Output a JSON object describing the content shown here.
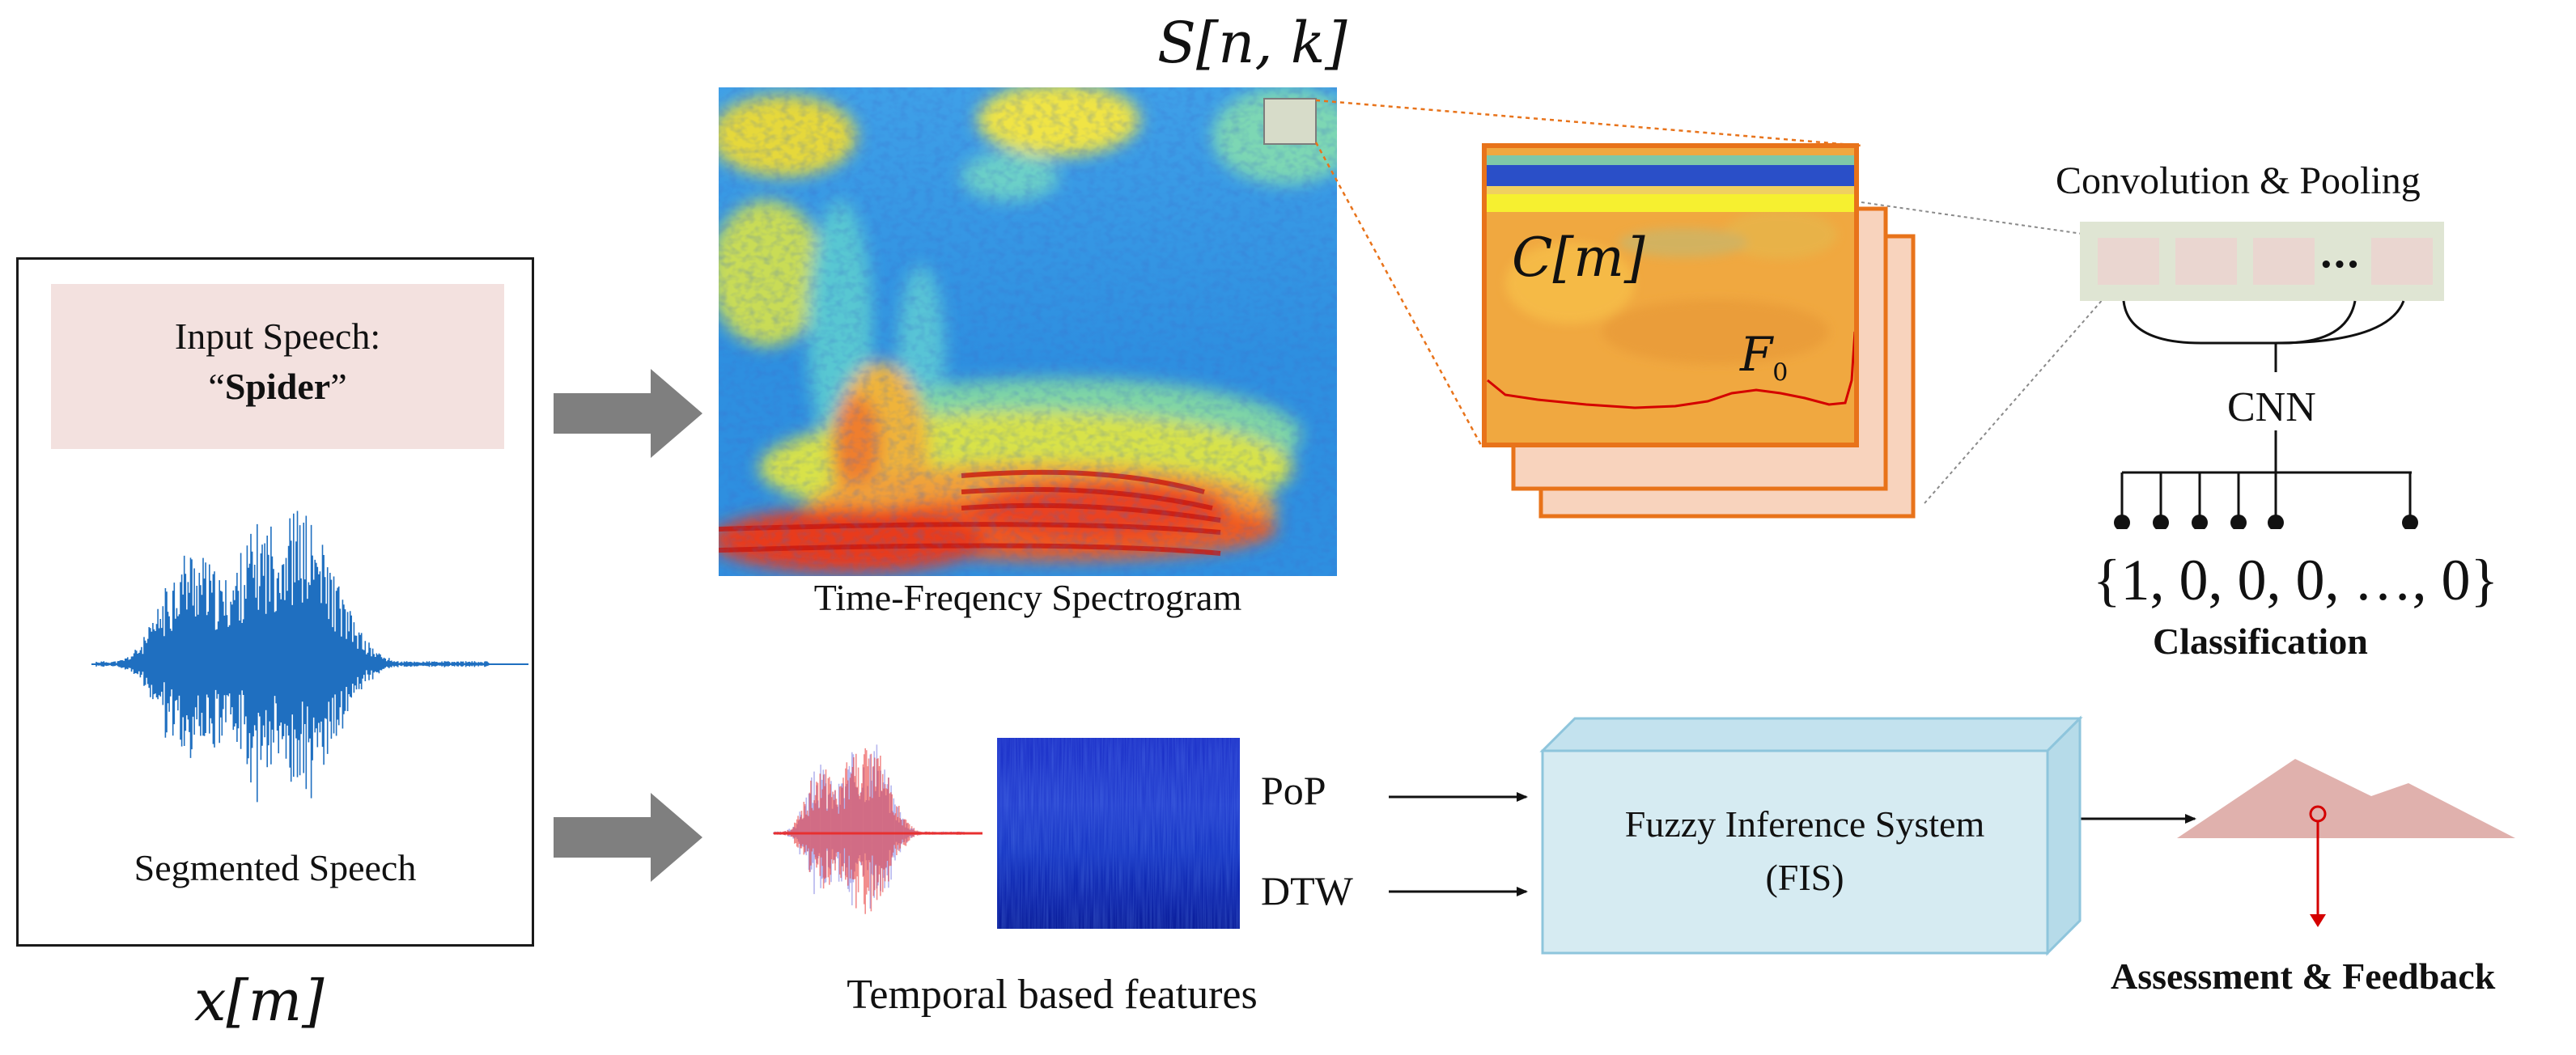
{
  "input": {
    "title": "Input Speech:",
    "word_open": "“",
    "word": "Spider",
    "word_close": "”",
    "segmented_label": "Segmented Speech",
    "signal_label": "x[m]"
  },
  "spectrogram": {
    "symbol": "S[n, k]",
    "caption": "Time-Freqency Spectrogram"
  },
  "feature_maps": {
    "symbol": "C[m]",
    "pitch_symbol": "F",
    "pitch_subscript": "0"
  },
  "cnn": {
    "layer_label": "Convolution & Pooling",
    "ellipsis": "•••",
    "name": "CNN",
    "output": "{1, 0, 0, 0, …, 0}",
    "output_label": "Classification"
  },
  "temporal": {
    "caption": "Temporal based features",
    "feature_1": "PoP",
    "feature_2": "DTW"
  },
  "fis": {
    "line_1": "Fuzzy Inference System",
    "line_2": "(FIS)"
  },
  "assessment": {
    "label": "Assessment & Feedback"
  },
  "colors": {
    "arrow_gray": "#7f7f7f",
    "label_box": "#f3e1df",
    "wave_blue": "#1f6fc0",
    "feature_orange": "#f0a840",
    "feature_border": "#e8731a",
    "back_layer": "#f8d3bd",
    "cnn_box": "#dfe5d3",
    "cnn_cell": "#ead6d0",
    "fis_box": "#d6ebf2",
    "fis_border": "#8ec5dc",
    "pitch_red": "#d40000",
    "feedback_pink": "#e0b1ad"
  }
}
